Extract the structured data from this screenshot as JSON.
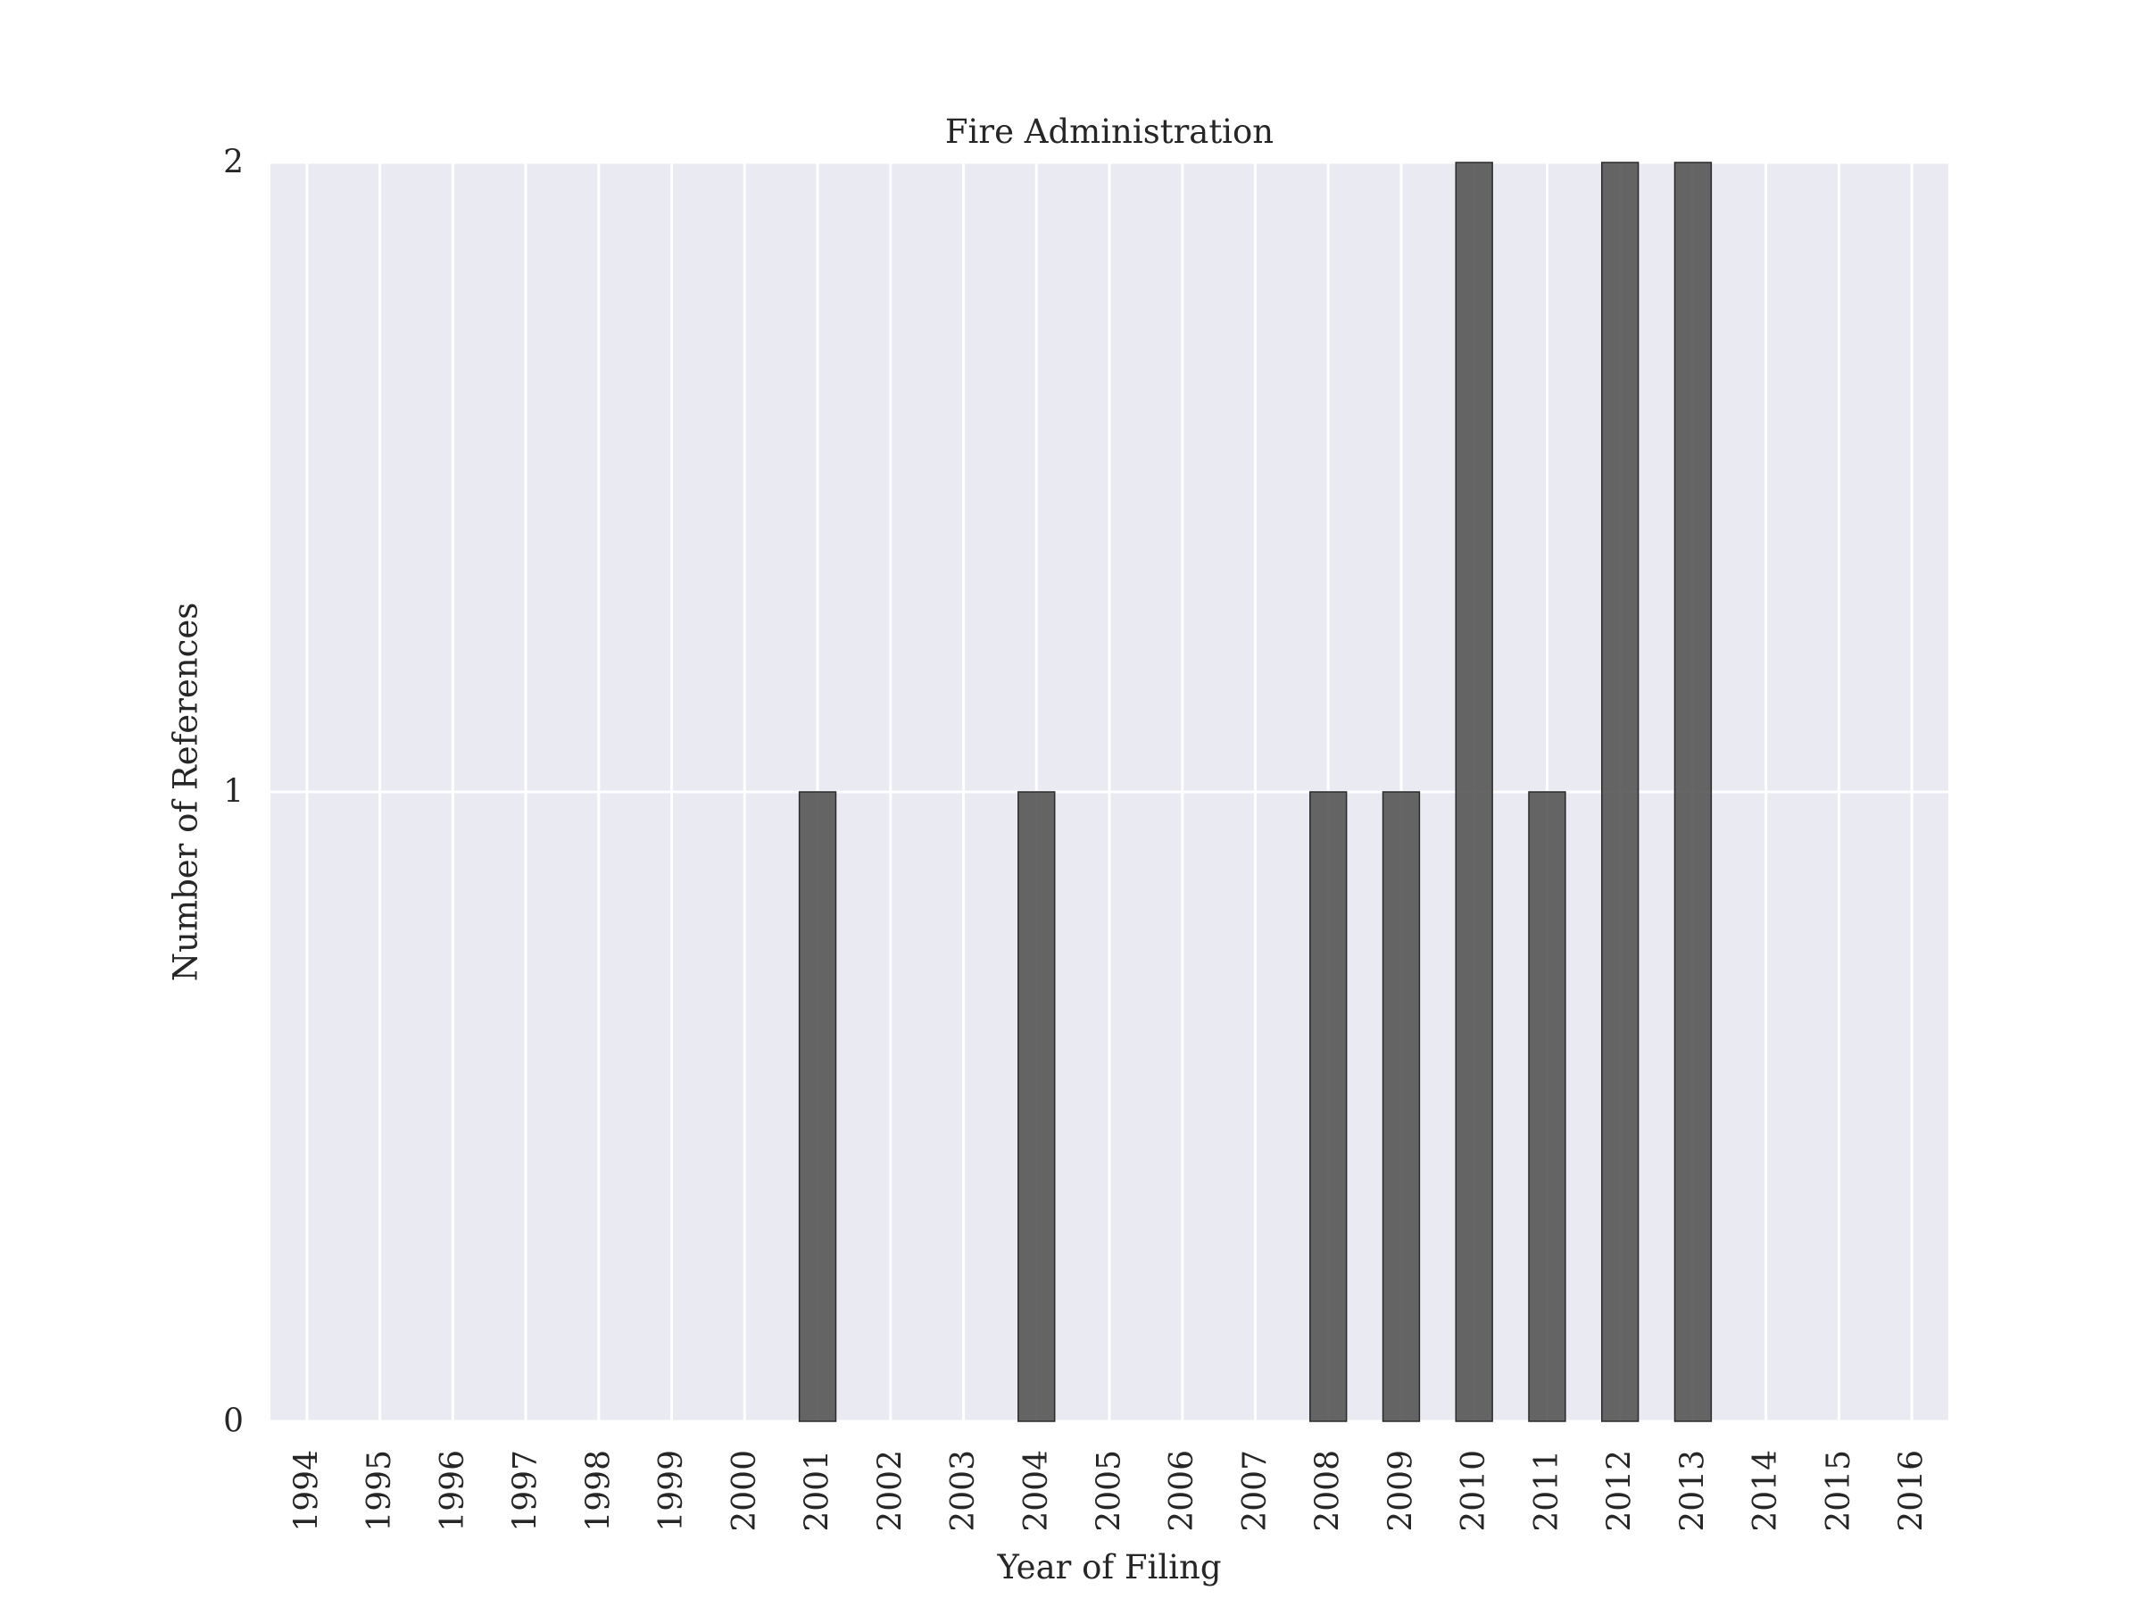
{
  "chart_data": {
    "type": "bar",
    "title": "Fire Administration",
    "xlabel": "Year of Filing",
    "ylabel": "Number of References",
    "categories": [
      "1994",
      "1995",
      "1996",
      "1997",
      "1998",
      "1999",
      "2000",
      "2001",
      "2002",
      "2003",
      "2004",
      "2005",
      "2006",
      "2007",
      "2008",
      "2009",
      "2010",
      "2011",
      "2012",
      "2013",
      "2014",
      "2015",
      "2016"
    ],
    "values": [
      0,
      0,
      0,
      0,
      0,
      0,
      0,
      1,
      0,
      0,
      1,
      0,
      0,
      0,
      1,
      1,
      2,
      1,
      2,
      2,
      0,
      0,
      0
    ],
    "ylim": [
      0,
      2
    ],
    "yticks": [
      "0",
      "1",
      "2"
    ],
    "grid": true,
    "colors": {
      "background": "#eaeaf2",
      "grid": "#ffffff",
      "bar": "#555555",
      "bar_edge": "#2a2a2a"
    }
  }
}
